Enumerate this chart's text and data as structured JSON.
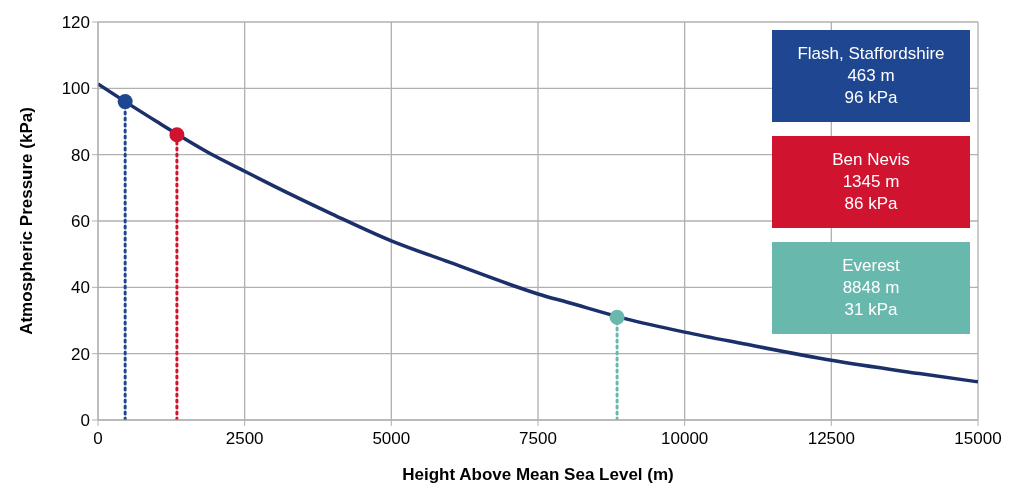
{
  "chart_data": {
    "type": "line",
    "xlabel": "Height Above Mean Sea Level (m)",
    "ylabel": "Atmospheric Pressure (kPa)",
    "xlim": [
      0,
      15000
    ],
    "xticks": [
      0,
      2500,
      5000,
      7500,
      10000,
      12500,
      15000
    ],
    "ylim": [
      0,
      120
    ],
    "yticks": [
      0,
      20,
      40,
      60,
      80,
      100,
      120
    ],
    "grid": true,
    "legend": "top right",
    "series": [
      {
        "color": "#1b2f6b",
        "marker": "none",
        "line_style": "solid",
        "x": [
          0,
          463,
          1000,
          2000,
          2500,
          3000,
          4000,
          5000,
          6000,
          7000,
          7500,
          8000,
          9000,
          10000,
          11000,
          12500,
          14000,
          15000
        ],
        "values": [
          101.3,
          96,
          90,
          79.5,
          75,
          70.5,
          62,
          54,
          47.5,
          41,
          38,
          35.5,
          30.5,
          26.5,
          23,
          18,
          14,
          11.5
        ]
      },
      {
        "type": "lollipop",
        "name": "Flash, Staffordshire",
        "color": "#1f4690",
        "marker": "circle",
        "line_style": "dotted",
        "x": [
          463
        ],
        "values": [
          96
        ]
      },
      {
        "type": "lollipop",
        "name": "Ben Nevis",
        "color": "#d0132f",
        "marker": "circle",
        "line_style": "dotted",
        "x": [
          1345
        ],
        "values": [
          86
        ]
      },
      {
        "type": "lollipop",
        "name": "Everest",
        "color": "#69b8ad",
        "marker": "circle",
        "line_style": "dotted",
        "x": [
          8848
        ],
        "values": [
          31
        ]
      }
    ],
    "annotations": [
      "463 m",
      "96 kPa",
      "1345 m",
      "86 kPa",
      "8848 m",
      "31 kPa"
    ]
  }
}
